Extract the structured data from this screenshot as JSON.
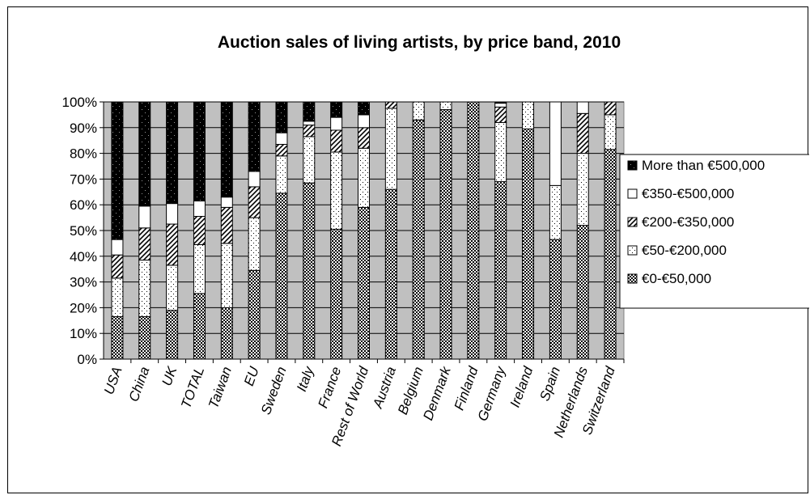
{
  "chart_data": {
    "type": "bar",
    "stacked": true,
    "percent": true,
    "title": "Auction sales of living artists, by price band, 2010",
    "xlabel": "",
    "ylabel": "",
    "ylim": [
      0,
      100
    ],
    "yticks": [
      "0%",
      "10%",
      "20%",
      "30%",
      "40%",
      "50%",
      "60%",
      "70%",
      "80%",
      "90%",
      "100%"
    ],
    "grid": true,
    "legend_position": "right",
    "plot_background": "#c0c0c0",
    "categories": [
      "USA",
      "China",
      "UK",
      "TOTAL",
      "Taiwan",
      "EU",
      "Sweden",
      "Italy",
      "France",
      "Rest of World",
      "Austria",
      "Belgium",
      "Denmark",
      "Finland",
      "Germany",
      "Ireland",
      "Spain",
      "Netherlands",
      "Switzerland"
    ],
    "series": [
      {
        "name": "€0-€50,000",
        "pattern": "dense-dots",
        "values": [
          16.5,
          16.5,
          19,
          25.5,
          20,
          34.5,
          64.5,
          68.5,
          50.5,
          59,
          66,
          93,
          97,
          100,
          69,
          89.5,
          46.5,
          52,
          81.5
        ]
      },
      {
        "name": "€50-€200,000",
        "pattern": "sparse-dots",
        "values": [
          15,
          22,
          17.5,
          19,
          25,
          20.5,
          14.5,
          18,
          30,
          23,
          31.5,
          7,
          3,
          0,
          23,
          10.5,
          21,
          28,
          13.5
        ]
      },
      {
        "name": "€200-€350,000",
        "pattern": "diagonal",
        "values": [
          9,
          12.5,
          16,
          11,
          14,
          12,
          4.5,
          4.5,
          8.5,
          8,
          2.5,
          0,
          0,
          0,
          6,
          0,
          0,
          15.5,
          5
        ]
      },
      {
        "name": "€350-€500,000",
        "pattern": "white",
        "values": [
          6,
          8.5,
          8,
          6,
          4,
          6,
          4.5,
          1.5,
          5,
          5,
          0,
          0,
          0,
          0,
          1.5,
          0,
          32.5,
          4.5,
          0
        ]
      },
      {
        "name": "More than €500,000",
        "pattern": "black",
        "values": [
          53.5,
          40.5,
          39.5,
          38.5,
          37,
          27,
          12,
          7.5,
          6,
          5,
          0,
          0,
          0,
          0,
          0.5,
          0,
          0,
          0,
          0
        ]
      }
    ]
  }
}
